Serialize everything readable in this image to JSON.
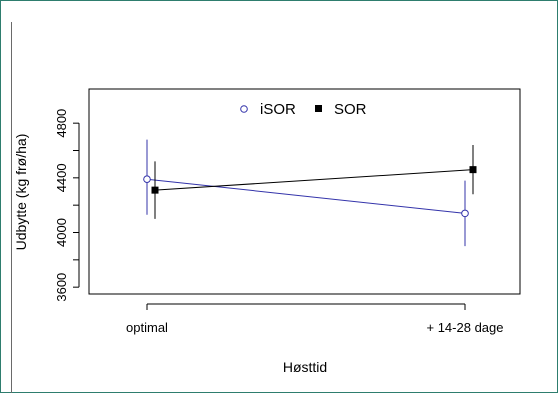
{
  "chart_data": {
    "type": "scatter",
    "title": "",
    "xlabel": "Høsttid",
    "ylabel": "Udbytte (kg frø/ha)",
    "categories": [
      "optimal",
      "+ 14-28 dage"
    ],
    "ylim": [
      3550,
      5050
    ],
    "yticks": [
      3600,
      4000,
      4400,
      4800
    ],
    "yticks_minor": [
      3800,
      4200,
      4600
    ],
    "grid": false,
    "legend_position": "top-center",
    "colors": {
      "iSOR": "#3333aa",
      "SOR": "#000000"
    },
    "series": [
      {
        "name": "iSOR",
        "marker": "open-circle",
        "color": "#3333aa",
        "values": [
          4390,
          4140
        ],
        "error_low": [
          4130,
          3900
        ],
        "error_high": [
          4680,
          4380
        ]
      },
      {
        "name": "SOR",
        "marker": "filled-square",
        "color": "#000000",
        "values": [
          4310,
          4460
        ],
        "error_low": [
          4100,
          4280
        ],
        "error_high": [
          4520,
          4640
        ]
      }
    ]
  }
}
